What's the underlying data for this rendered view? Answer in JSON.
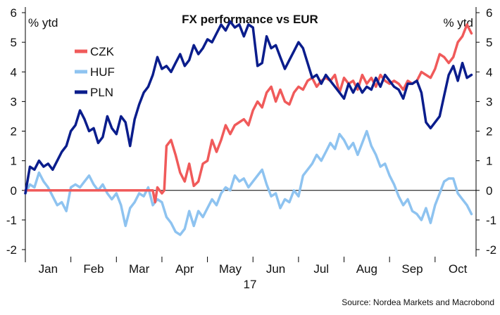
{
  "chart_data": {
    "type": "line",
    "title": "FX performance vs EUR",
    "ylabel_left": "% ytd",
    "ylabel_right": "% ytd",
    "ylim": [
      -2,
      6
    ],
    "yticks": [
      -2,
      -1,
      0,
      1,
      2,
      3,
      4,
      5,
      6
    ],
    "xlim": [
      0,
      9.9
    ],
    "month_labels": [
      "Jan",
      "Feb",
      "Mar",
      "Apr",
      "May",
      "Jun",
      "Jul",
      "Aug",
      "Sep",
      "Oct"
    ],
    "year_label": "17",
    "source": "Source: Nordea Markets and Macrobond",
    "colors": {
      "CZK": "#f05a5a",
      "HUF": "#8ec3f0",
      "PLN": "#0a1d8c",
      "zero_line": "#000000",
      "axis": "#000000"
    },
    "series": [
      {
        "name": "CZK",
        "x": [
          0,
          0.5,
          1,
          1.5,
          2,
          2.5,
          2.8,
          2.85,
          2.9,
          3.0,
          3.05,
          3.1,
          3.2,
          3.3,
          3.4,
          3.5,
          3.6,
          3.7,
          3.8,
          3.9,
          4.0,
          4.1,
          4.2,
          4.3,
          4.4,
          4.5,
          4.6,
          4.7,
          4.8,
          4.9,
          5.0,
          5.1,
          5.2,
          5.3,
          5.4,
          5.5,
          5.6,
          5.7,
          5.8,
          5.9,
          6.0,
          6.1,
          6.2,
          6.3,
          6.4,
          6.5,
          6.6,
          6.7,
          6.8,
          6.9,
          7.0,
          7.1,
          7.2,
          7.3,
          7.4,
          7.5,
          7.6,
          7.7,
          7.8,
          7.9,
          8.0,
          8.1,
          8.2,
          8.3,
          8.4,
          8.5,
          8.6,
          8.7,
          8.8,
          8.9,
          9.0,
          9.1,
          9.2,
          9.3,
          9.4,
          9.5,
          9.6,
          9.7,
          9.8
        ],
        "values": [
          0,
          0,
          0,
          0,
          0,
          0,
          0,
          -0.4,
          0.1,
          -0.1,
          0,
          1.5,
          1.7,
          1.2,
          0.6,
          0.3,
          0.9,
          0.15,
          0.3,
          0.9,
          1.0,
          1.7,
          1.3,
          1.7,
          2.2,
          1.9,
          2.2,
          2.3,
          2.4,
          2.2,
          2.7,
          3.0,
          2.8,
          3.3,
          3.5,
          3.0,
          3.4,
          3.0,
          2.9,
          3.3,
          3.5,
          3.4,
          3.7,
          3.8,
          3.5,
          3.7,
          3.8,
          3.7,
          3.9,
          3.3,
          3.8,
          3.6,
          3.7,
          3.4,
          3.9,
          3.6,
          3.8,
          3.5,
          3.9,
          3.7,
          3.6,
          3.7,
          3.6,
          3.4,
          3.7,
          3.6,
          3.7,
          4.0,
          3.9,
          3.8,
          4.1,
          4.6,
          4.5,
          4.3,
          4.5,
          5.0,
          5.2,
          5.6,
          5.3
        ]
      },
      {
        "name": "HUF",
        "x": [
          0,
          0.1,
          0.2,
          0.3,
          0.4,
          0.5,
          0.6,
          0.7,
          0.8,
          0.9,
          1.0,
          1.1,
          1.2,
          1.3,
          1.4,
          1.5,
          1.6,
          1.7,
          1.8,
          1.9,
          2.0,
          2.1,
          2.2,
          2.3,
          2.4,
          2.5,
          2.6,
          2.7,
          2.8,
          2.9,
          3.0,
          3.1,
          3.2,
          3.3,
          3.4,
          3.5,
          3.6,
          3.7,
          3.8,
          3.9,
          4.0,
          4.1,
          4.2,
          4.3,
          4.4,
          4.5,
          4.6,
          4.7,
          4.8,
          4.9,
          5.0,
          5.1,
          5.2,
          5.3,
          5.4,
          5.5,
          5.6,
          5.7,
          5.8,
          5.9,
          6.0,
          6.1,
          6.2,
          6.3,
          6.4,
          6.5,
          6.6,
          6.7,
          6.8,
          6.9,
          7.0,
          7.1,
          7.2,
          7.3,
          7.4,
          7.5,
          7.6,
          7.7,
          7.8,
          7.9,
          8.0,
          8.1,
          8.2,
          8.3,
          8.4,
          8.5,
          8.6,
          8.7,
          8.8,
          8.9,
          9.0,
          9.1,
          9.2,
          9.3,
          9.4,
          9.5,
          9.6,
          9.7,
          9.8
        ],
        "values": [
          -0.1,
          0.2,
          0.1,
          0.6,
          0.3,
          0.1,
          -0.2,
          -0.5,
          -0.4,
          -0.7,
          0.1,
          0.2,
          0.1,
          0.3,
          0.5,
          0.2,
          0.0,
          0.2,
          -0.1,
          -0.3,
          -0.1,
          -0.5,
          -1.2,
          -0.6,
          -0.4,
          -0.1,
          -0.2,
          0.1,
          -0.5,
          -0.3,
          -0.4,
          -0.9,
          -1.1,
          -1.4,
          -1.5,
          -1.3,
          -0.7,
          -1.2,
          -0.7,
          -0.9,
          -0.6,
          -0.3,
          -0.5,
          -0.1,
          0.1,
          0.0,
          0.5,
          0.3,
          0.4,
          0.1,
          0.3,
          0.5,
          0.7,
          0.2,
          -0.2,
          -0.1,
          -0.6,
          -0.3,
          -0.4,
          0.0,
          -0.2,
          0.5,
          0.7,
          0.9,
          1.2,
          1.0,
          1.3,
          1.6,
          1.4,
          1.9,
          1.7,
          1.4,
          1.6,
          1.2,
          1.6,
          2.0,
          1.5,
          1.2,
          0.8,
          0.9,
          0.5,
          0.2,
          -0.2,
          -0.5,
          -0.3,
          -0.7,
          -0.8,
          -1.0,
          -0.6,
          -1.1,
          -0.5,
          -0.1,
          0.3,
          0.4,
          0.4,
          -0.1,
          -0.3,
          -0.5,
          -0.8
        ]
      },
      {
        "name": "PLN",
        "x": [
          0,
          0.1,
          0.2,
          0.3,
          0.4,
          0.5,
          0.6,
          0.7,
          0.8,
          0.9,
          1.0,
          1.1,
          1.2,
          1.3,
          1.4,
          1.5,
          1.6,
          1.7,
          1.8,
          1.9,
          2.0,
          2.1,
          2.2,
          2.3,
          2.4,
          2.5,
          2.6,
          2.7,
          2.8,
          2.9,
          3.0,
          3.1,
          3.2,
          3.3,
          3.4,
          3.5,
          3.6,
          3.7,
          3.8,
          3.9,
          4.0,
          4.1,
          4.2,
          4.3,
          4.4,
          4.5,
          4.6,
          4.7,
          4.8,
          4.9,
          5.0,
          5.1,
          5.2,
          5.3,
          5.4,
          5.5,
          5.6,
          5.7,
          5.8,
          5.9,
          6.0,
          6.1,
          6.2,
          6.3,
          6.4,
          6.5,
          6.6,
          6.7,
          6.8,
          6.9,
          7.0,
          7.1,
          7.2,
          7.3,
          7.4,
          7.5,
          7.6,
          7.7,
          7.8,
          7.9,
          8.0,
          8.1,
          8.2,
          8.3,
          8.4,
          8.5,
          8.6,
          8.7,
          8.8,
          8.9,
          9.0,
          9.1,
          9.2,
          9.3,
          9.4,
          9.5,
          9.6,
          9.7,
          9.8
        ],
        "values": [
          -0.1,
          0.8,
          0.7,
          1.0,
          0.8,
          0.9,
          0.7,
          1.0,
          1.3,
          1.5,
          2.0,
          2.2,
          2.7,
          2.4,
          2.0,
          2.1,
          1.6,
          1.8,
          2.5,
          2.1,
          1.9,
          2.5,
          2.3,
          1.5,
          2.4,
          2.9,
          3.3,
          3.5,
          3.9,
          4.5,
          4.1,
          4.2,
          4.0,
          4.3,
          4.6,
          4.2,
          4.4,
          4.9,
          4.6,
          4.8,
          5.1,
          5.0,
          5.3,
          5.6,
          5.4,
          5.7,
          5.5,
          5.6,
          5.2,
          5.6,
          5.5,
          4.2,
          4.3,
          5.2,
          4.8,
          4.9,
          4.5,
          4.1,
          4.4,
          4.7,
          5.0,
          4.8,
          4.3,
          3.8,
          3.9,
          3.6,
          3.9,
          3.7,
          3.5,
          3.3,
          3.1,
          3.6,
          3.3,
          3.6,
          3.3,
          3.5,
          3.4,
          3.8,
          3.5,
          3.9,
          3.7,
          3.5,
          3.4,
          3.1,
          3.6,
          3.6,
          3.7,
          3.3,
          2.3,
          2.1,
          2.3,
          2.5,
          3.2,
          3.9,
          4.2,
          3.7,
          4.3,
          3.8,
          3.9
        ]
      }
    ]
  }
}
